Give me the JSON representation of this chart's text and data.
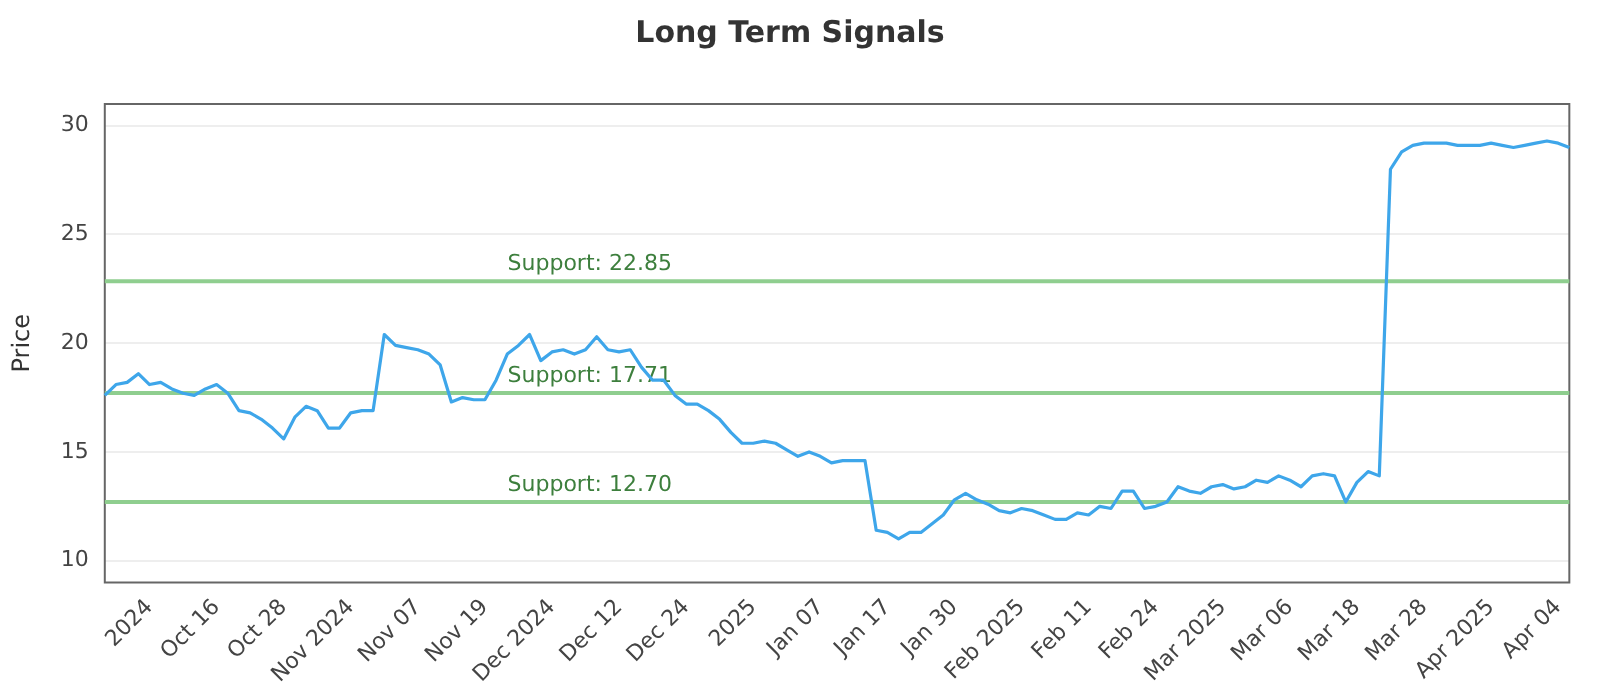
{
  "chart_data": {
    "type": "line",
    "title": "Long Term Signals",
    "ylabel": "Price",
    "categories": [
      null,
      null,
      null,
      null,
      "2024",
      null,
      null,
      null,
      null,
      null,
      "Oct 16",
      null,
      null,
      null,
      null,
      null,
      "Oct 28",
      null,
      null,
      null,
      null,
      null,
      "Nov 2024",
      null,
      null,
      null,
      null,
      null,
      "Nov 07",
      null,
      null,
      null,
      null,
      null,
      "Nov 19",
      null,
      null,
      null,
      null,
      null,
      "Dec 2024",
      null,
      null,
      null,
      null,
      null,
      "Dec 12",
      null,
      null,
      null,
      null,
      null,
      "Dec 24",
      null,
      null,
      null,
      null,
      null,
      "2025",
      null,
      null,
      null,
      null,
      null,
      "Jan 07",
      null,
      null,
      null,
      null,
      null,
      "Jan 17",
      null,
      null,
      null,
      null,
      null,
      "Jan 30",
      null,
      null,
      null,
      null,
      null,
      "Feb 2025",
      null,
      null,
      null,
      null,
      null,
      "Feb 11",
      null,
      null,
      null,
      null,
      null,
      "Feb 24",
      null,
      null,
      null,
      null,
      null,
      "Mar 2025",
      null,
      null,
      null,
      null,
      null,
      "Mar 06",
      null,
      null,
      null,
      null,
      null,
      "Mar 18",
      null,
      null,
      null,
      null,
      null,
      "Mar 28",
      null,
      null,
      null,
      null,
      null,
      "Apr 2025",
      null,
      null,
      null,
      null,
      null,
      "Apr 04",
      null
    ],
    "series": [
      {
        "color": "#3ea6ea",
        "values": [
          17.6,
          18.1,
          18.2,
          18.6,
          18.1,
          18.2,
          17.9,
          17.7,
          17.6,
          17.9,
          18.1,
          17.7,
          16.9,
          16.8,
          16.5,
          16.1,
          15.6,
          16.6,
          17.1,
          16.9,
          16.1,
          16.1,
          16.8,
          16.9,
          16.9,
          20.4,
          19.9,
          19.8,
          19.7,
          19.5,
          19.0,
          17.3,
          17.5,
          17.4,
          17.4,
          18.3,
          19.5,
          19.9,
          20.4,
          19.2,
          19.6,
          19.7,
          19.5,
          19.7,
          20.3,
          19.7,
          19.6,
          19.7,
          18.9,
          18.3,
          18.3,
          17.6,
          17.2,
          17.2,
          16.9,
          16.5,
          15.9,
          15.4,
          15.4,
          15.5,
          15.4,
          15.1,
          14.8,
          15.0,
          14.8,
          14.5,
          14.6,
          14.6,
          14.6,
          11.4,
          11.3,
          11.0,
          11.3,
          11.3,
          11.7,
          12.1,
          12.8,
          13.1,
          12.8,
          12.6,
          12.3,
          12.2,
          12.4,
          12.3,
          12.1,
          11.9,
          11.9,
          12.2,
          12.1,
          12.5,
          12.4,
          13.2,
          13.2,
          12.4,
          12.5,
          12.7,
          13.4,
          13.2,
          13.1,
          13.4,
          13.5,
          13.3,
          13.4,
          13.7,
          13.6,
          13.9,
          13.7,
          13.4,
          13.9,
          14.0,
          13.9,
          12.7,
          13.6,
          14.1,
          13.9,
          28.0,
          28.8,
          29.1,
          29.2,
          29.2,
          29.2,
          29.1,
          29.1,
          29.1,
          29.2,
          29.1,
          29.0,
          29.1,
          29.2,
          29.3,
          29.2,
          29.0
        ]
      }
    ],
    "ylim": [
      9,
      31
    ],
    "yticks": [
      10,
      15,
      20,
      25,
      30
    ],
    "grid": "y",
    "marker": "none",
    "line_style": "solid",
    "legend": false,
    "ref_lines": [
      {
        "axis": "y",
        "value": 22.85,
        "label": "Support: 22.85",
        "color": "#8fce8f"
      },
      {
        "axis": "y",
        "value": 17.71,
        "label": "Support: 17.71",
        "color": "#8fce8f"
      },
      {
        "axis": "y",
        "value": 12.7,
        "label": "Support: 12.70",
        "color": "#8fce8f"
      }
    ]
  }
}
